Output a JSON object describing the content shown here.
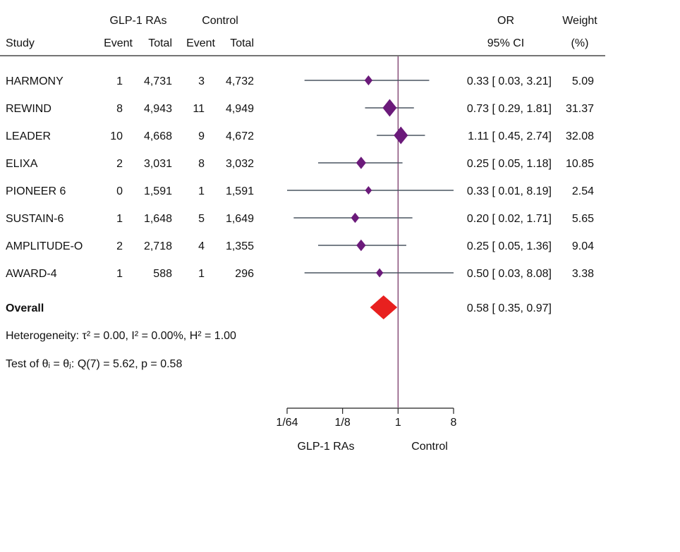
{
  "headers": {
    "group1_title": "GLP-1 RAs",
    "group2_title": "Control",
    "study": "Study",
    "g1_event": "Event",
    "g1_total": "Total",
    "g2_event": "Event",
    "g2_total": "Total",
    "or_top": "OR",
    "or_bottom": "95% CI",
    "weight_top": "Weight",
    "weight_bottom": "(%)"
  },
  "overall_label": "Overall",
  "overall_text": "0.58 [ 0.35,  0.97]",
  "heterogeneity": "Heterogeneity: τ² = 0.00, I² = 0.00%, H² = 1.00",
  "test_text": "Test of θᵢ = θⱼ: Q(7) = 5.62, p = 0.58",
  "axis": {
    "ticks": [
      "1/64",
      "1/8",
      "1",
      "8"
    ],
    "left_label": "GLP-1 RAs",
    "right_label": "Control"
  },
  "colors": {
    "marker": "#6b1a7a",
    "overall": "#e8201f",
    "ci_line": "#4a5560",
    "ref_line": "#7a3a6a"
  },
  "chart_data": {
    "type": "forest",
    "scale": "log2",
    "xlim": [
      0.015625,
      8
    ],
    "xticks": [
      0.015625,
      0.125,
      1,
      8
    ],
    "studies": [
      {
        "name": "HARMONY",
        "e1": "1",
        "t1": "4,731",
        "e2": "3",
        "t2": "4,732",
        "or": 0.33,
        "lo": 0.03,
        "hi": 3.21,
        "ci_text": "0.33 [ 0.03,  3.21]",
        "weight": 5.09,
        "weight_text": "5.09"
      },
      {
        "name": "REWIND",
        "e1": "8",
        "t1": "4,943",
        "e2": "11",
        "t2": "4,949",
        "or": 0.73,
        "lo": 0.29,
        "hi": 1.81,
        "ci_text": "0.73 [ 0.29,  1.81]",
        "weight": 31.37,
        "weight_text": "31.37"
      },
      {
        "name": "LEADER",
        "e1": "10",
        "t1": "4,668",
        "e2": "9",
        "t2": "4,672",
        "or": 1.11,
        "lo": 0.45,
        "hi": 2.74,
        "ci_text": "1.11 [ 0.45,  2.74]",
        "weight": 32.08,
        "weight_text": "32.08"
      },
      {
        "name": "ELIXA",
        "e1": "2",
        "t1": "3,031",
        "e2": "8",
        "t2": "3,032",
        "or": 0.25,
        "lo": 0.05,
        "hi": 1.18,
        "ci_text": "0.25 [ 0.05,  1.18]",
        "weight": 10.85,
        "weight_text": "10.85"
      },
      {
        "name": "PIONEER 6",
        "e1": "0",
        "t1": "1,591",
        "e2": "1",
        "t2": "1,591",
        "or": 0.33,
        "lo": 0.01,
        "hi": 8.19,
        "ci_text": "0.33 [ 0.01,  8.19]",
        "weight": 2.54,
        "weight_text": "2.54"
      },
      {
        "name": "SUSTAIN-6",
        "e1": "1",
        "t1": "1,648",
        "e2": "5",
        "t2": "1,649",
        "or": 0.2,
        "lo": 0.02,
        "hi": 1.71,
        "ci_text": "0.20 [ 0.02,  1.71]",
        "weight": 5.65,
        "weight_text": "5.65"
      },
      {
        "name": "AMPLITUDE-O",
        "e1": "2",
        "t1": "2,718",
        "e2": "4",
        "t2": "1,355",
        "or": 0.25,
        "lo": 0.05,
        "hi": 1.36,
        "ci_text": "0.25 [ 0.05,  1.36]",
        "weight": 9.04,
        "weight_text": "9.04"
      },
      {
        "name": "AWARD-4",
        "e1": "1",
        "t1": "588",
        "e2": "1",
        "t2": "296",
        "or": 0.5,
        "lo": 0.03,
        "hi": 8.08,
        "ci_text": "0.50 [ 0.03,  8.08]",
        "weight": 3.38,
        "weight_text": "3.38"
      }
    ],
    "overall": {
      "or": 0.58,
      "lo": 0.35,
      "hi": 0.97
    }
  }
}
